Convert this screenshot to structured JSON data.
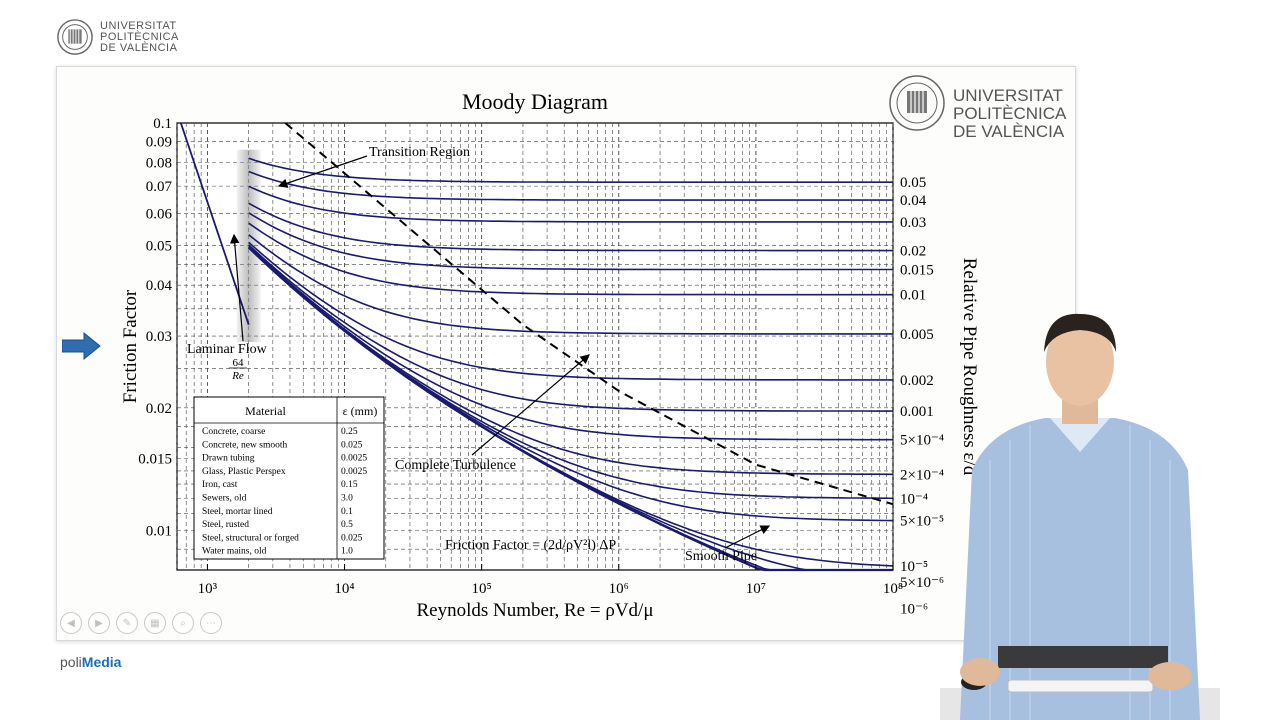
{
  "header": {
    "logo_lines": [
      "UNIVERSITAT",
      "POLITÈCNICA",
      "DE VALÈNCIA"
    ]
  },
  "footer": {
    "brand_part1": "poli",
    "brand_part2": "Media"
  },
  "colors": {
    "curve": "#1a1a6e",
    "grid": "#444444",
    "brand_blue": "#2f6db0",
    "polimedia_blue": "#1d6fb5"
  },
  "nav_icons": [
    "prev-icon",
    "next-icon",
    "pen-icon",
    "slides-icon",
    "zoom-icon",
    "more-icon"
  ],
  "table": {
    "headers": [
      "Material",
      "ε (mm)"
    ],
    "rows": [
      [
        "Concrete, coarse",
        "0.25"
      ],
      [
        "Concrete, new smooth",
        "0.025"
      ],
      [
        "Drawn tubing",
        "0.0025"
      ],
      [
        "Glass, Plastic Perspex",
        "0.0025"
      ],
      [
        "Iron, cast",
        "0.15"
      ],
      [
        "Sewers, old",
        "3.0"
      ],
      [
        "Steel, mortar lined",
        "0.1"
      ],
      [
        "Steel, rusted",
        "0.5"
      ],
      [
        "Steel, structural or forged",
        "0.025"
      ],
      [
        "Water mains, old",
        "1.0"
      ]
    ]
  },
  "chart_data": {
    "type": "line",
    "title": "Moody Diagram",
    "xlabel": "Reynolds Number, Re = ρVd/μ",
    "ylabel": "Friction Factor",
    "y2label": "Relative Pipe Roughness ε/d",
    "x_scale": "log",
    "y_scale": "log",
    "xlim": [
      600,
      100000000
    ],
    "ylim": [
      0.008,
      0.1
    ],
    "x_ticks": [
      {
        "value": 1000,
        "label": "10³"
      },
      {
        "value": 10000,
        "label": "10⁴"
      },
      {
        "value": 100000,
        "label": "10⁵"
      },
      {
        "value": 1000000,
        "label": "10⁶"
      },
      {
        "value": 10000000,
        "label": "10⁷"
      },
      {
        "value": 100000000,
        "label": "10⁸"
      }
    ],
    "y_ticks": [
      {
        "value": 0.1,
        "label": "0.1"
      },
      {
        "value": 0.09,
        "label": "0.09"
      },
      {
        "value": 0.08,
        "label": "0.08"
      },
      {
        "value": 0.07,
        "label": "0.07"
      },
      {
        "value": 0.06,
        "label": "0.06"
      },
      {
        "value": 0.05,
        "label": "0.05"
      },
      {
        "value": 0.04,
        "label": "0.04"
      },
      {
        "value": 0.03,
        "label": "0.03"
      },
      {
        "value": 0.02,
        "label": "0.02"
      },
      {
        "value": 0.015,
        "label": "0.015"
      },
      {
        "value": 0.01,
        "label": "0.01"
      }
    ],
    "roughness_series": [
      {
        "value": 0.05,
        "label": "0.05"
      },
      {
        "value": 0.04,
        "label": "0.04"
      },
      {
        "value": 0.03,
        "label": "0.03"
      },
      {
        "value": 0.02,
        "label": "0.02"
      },
      {
        "value": 0.015,
        "label": "0.015"
      },
      {
        "value": 0.01,
        "label": "0.01"
      },
      {
        "value": 0.005,
        "label": "0.005"
      },
      {
        "value": 0.002,
        "label": "0.002"
      },
      {
        "value": 0.001,
        "label": "0.001"
      },
      {
        "value": 0.0005,
        "label": "5×10⁻⁴"
      },
      {
        "value": 0.0002,
        "label": "2×10⁻⁴"
      },
      {
        "value": 0.0001,
        "label": "10⁻⁴"
      },
      {
        "value": 5e-05,
        "label": "5×10⁻⁵"
      },
      {
        "value": 1e-05,
        "label": "10⁻⁵"
      },
      {
        "value": 5e-06,
        "label": "5×10⁻⁶"
      },
      {
        "value": 1e-06,
        "label": "10⁻⁶"
      }
    ],
    "laminar": {
      "re_start": 640,
      "re_end": 2000
    },
    "transition_re": 2000,
    "smooth_re_end": 100000000,
    "annotations": {
      "transition": "Transition Region",
      "laminar": "Laminar Flow",
      "laminar_num": "64",
      "laminar_den": "Re",
      "turbulence": "Complete Turbulence",
      "friction_formula": "Friction Factor = (2d/ρV²l) ΔP",
      "smooth": "Smooth Pipe"
    }
  }
}
